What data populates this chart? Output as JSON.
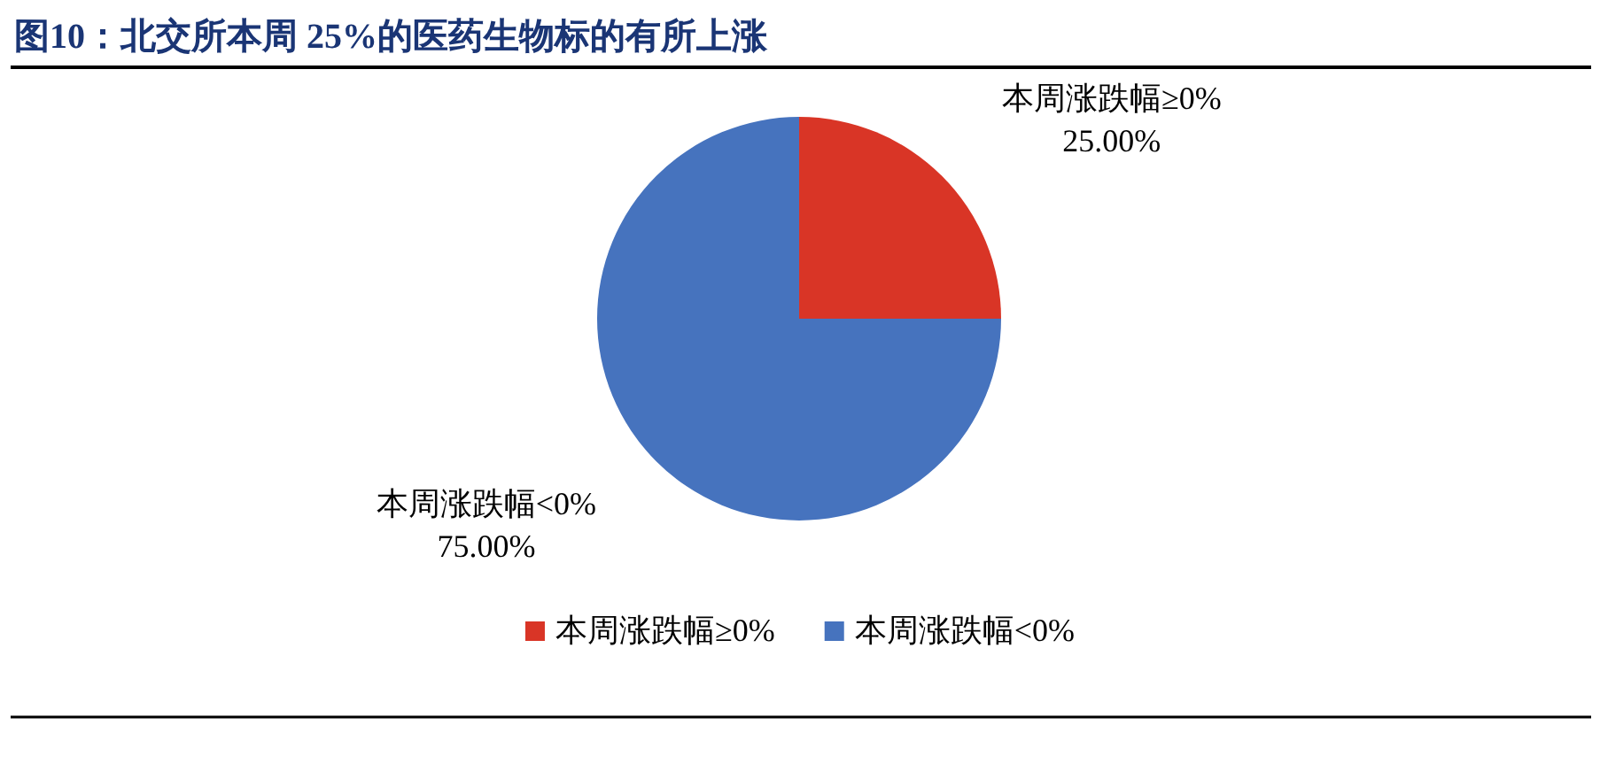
{
  "chart_data": {
    "type": "pie",
    "title": "图10：北交所本周 25%的医药生物标的有所上涨",
    "categories": [
      "本周涨跌幅≥0%",
      "本周涨跌幅<0%"
    ],
    "values": [
      25,
      75
    ],
    "value_labels": [
      "25.00%",
      "75.00%"
    ],
    "colors": [
      "#d93526",
      "#4673be"
    ],
    "legend": "bottom"
  }
}
